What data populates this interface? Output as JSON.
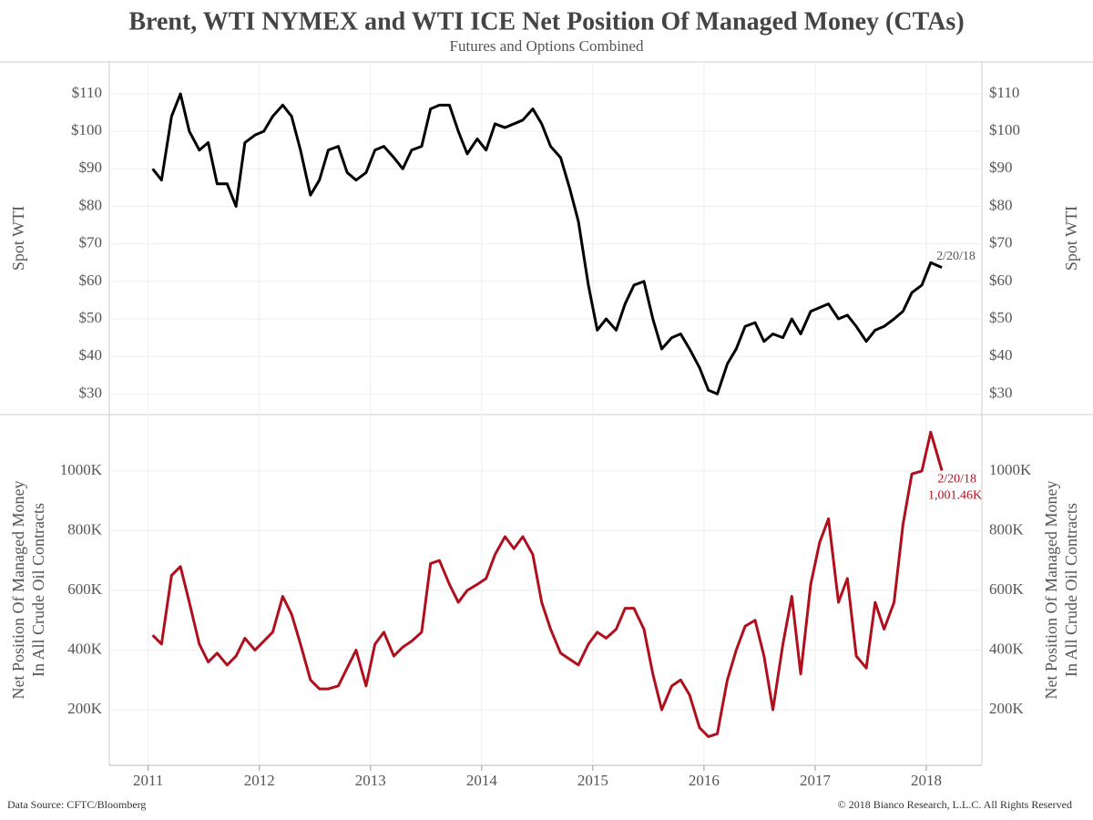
{
  "chart_data": [
    {
      "type": "line",
      "title": "Brent, WTI NYMEX and WTI ICE Net Position Of Managed Money (CTAs)",
      "subtitle": "Futures and Options Combined",
      "ylabel": [
        "Spot WTI"
      ],
      "annotation": "2/20/18",
      "color": "#000000",
      "x": [
        2011.04,
        2011.12,
        2011.21,
        2011.29,
        2011.37,
        2011.46,
        2011.54,
        2011.62,
        2011.71,
        2011.79,
        2011.87,
        2011.96,
        2012.04,
        2012.12,
        2012.21,
        2012.29,
        2012.37,
        2012.46,
        2012.54,
        2012.62,
        2012.71,
        2012.79,
        2012.87,
        2012.96,
        2013.04,
        2013.12,
        2013.21,
        2013.29,
        2013.37,
        2013.46,
        2013.54,
        2013.62,
        2013.71,
        2013.79,
        2013.87,
        2013.96,
        2014.04,
        2014.12,
        2014.21,
        2014.29,
        2014.37,
        2014.46,
        2014.54,
        2014.62,
        2014.71,
        2014.79,
        2014.87,
        2014.96,
        2015.04,
        2015.12,
        2015.21,
        2015.29,
        2015.37,
        2015.46,
        2015.54,
        2015.62,
        2015.71,
        2015.79,
        2015.87,
        2015.96,
        2016.04,
        2016.12,
        2016.21,
        2016.29,
        2016.37,
        2016.46,
        2016.54,
        2016.62,
        2016.71,
        2016.79,
        2016.87,
        2016.96,
        2017.04,
        2017.12,
        2017.21,
        2017.29,
        2017.37,
        2017.46,
        2017.54,
        2017.62,
        2017.71,
        2017.79,
        2017.87,
        2017.96,
        2018.04,
        2018.14
      ],
      "values": [
        90,
        87,
        104,
        110,
        100,
        95,
        97,
        86,
        86,
        80,
        97,
        99,
        100,
        104,
        107,
        104,
        95,
        83,
        87,
        95,
        96,
        89,
        87,
        89,
        95,
        96,
        93,
        90,
        95,
        96,
        106,
        107,
        107,
        100,
        94,
        98,
        95,
        102,
        101,
        102,
        103,
        106,
        102,
        96,
        93,
        85,
        76,
        59,
        47,
        50,
        47,
        54,
        59,
        60,
        50,
        42,
        45,
        46,
        42,
        37,
        31,
        30,
        38,
        42,
        48,
        49,
        44,
        46,
        45,
        50,
        46,
        52,
        53,
        54,
        50,
        51,
        48,
        44,
        47,
        48,
        50,
        52,
        57,
        59,
        65,
        63.7
      ],
      "xlim": [
        2010.65,
        2018.5
      ],
      "xticks": [
        2011,
        2012,
        2013,
        2014,
        2015,
        2016,
        2017,
        2018
      ],
      "ylim": [
        24.5,
        118.5
      ],
      "yticks": [
        {
          "value": 30,
          "label": "$30"
        },
        {
          "value": 40,
          "label": "$40"
        },
        {
          "value": 50,
          "label": "$50"
        },
        {
          "value": 60,
          "label": "$60"
        },
        {
          "value": 70,
          "label": "$70"
        },
        {
          "value": 80,
          "label": "$80"
        },
        {
          "value": 90,
          "label": "$90"
        },
        {
          "value": 100,
          "label": "$100"
        },
        {
          "value": 110,
          "label": "$110"
        }
      ],
      "grid": true
    },
    {
      "type": "line",
      "ylabel": [
        "Net Position Of Managed Money",
        "In All Crude Oil Contracts"
      ],
      "annotation": "2/20/18",
      "color": "#b0101e",
      "x": [
        2011.04,
        2011.12,
        2011.21,
        2011.29,
        2011.37,
        2011.46,
        2011.54,
        2011.62,
        2011.71,
        2011.79,
        2011.87,
        2011.96,
        2012.04,
        2012.12,
        2012.21,
        2012.29,
        2012.37,
        2012.46,
        2012.54,
        2012.62,
        2012.71,
        2012.79,
        2012.87,
        2012.96,
        2013.04,
        2013.12,
        2013.21,
        2013.29,
        2013.37,
        2013.46,
        2013.54,
        2013.62,
        2013.71,
        2013.79,
        2013.87,
        2013.96,
        2014.04,
        2014.12,
        2014.21,
        2014.29,
        2014.37,
        2014.46,
        2014.54,
        2014.62,
        2014.71,
        2014.79,
        2014.87,
        2014.96,
        2015.04,
        2015.12,
        2015.21,
        2015.29,
        2015.37,
        2015.46,
        2015.54,
        2015.62,
        2015.71,
        2015.79,
        2015.87,
        2015.96,
        2016.04,
        2016.12,
        2016.21,
        2016.29,
        2016.37,
        2016.46,
        2016.54,
        2016.62,
        2016.71,
        2016.79,
        2016.87,
        2016.96,
        2017.04,
        2017.12,
        2017.21,
        2017.29,
        2017.37,
        2017.46,
        2017.54,
        2017.62,
        2017.71,
        2017.79,
        2017.87,
        2017.96,
        2018.04,
        2018.14
      ],
      "values": [
        450,
        420,
        650,
        680,
        560,
        420,
        360,
        390,
        350,
        380,
        440,
        400,
        430,
        460,
        580,
        520,
        420,
        300,
        270,
        270,
        280,
        340,
        400,
        280,
        420,
        460,
        380,
        410,
        430,
        460,
        690,
        700,
        620,
        560,
        600,
        620,
        640,
        720,
        780,
        740,
        780,
        720,
        560,
        470,
        390,
        370,
        350,
        420,
        460,
        440,
        470,
        540,
        540,
        470,
        320,
        200,
        280,
        300,
        250,
        140,
        110,
        120,
        300,
        400,
        480,
        500,
        380,
        200,
        420,
        580,
        320,
        620,
        760,
        840,
        560,
        640,
        380,
        340,
        560,
        470,
        560,
        820,
        990,
        1000,
        1130,
        1001.46
      ],
      "value_labels": [
        null,
        null,
        null,
        null,
        null,
        null,
        null,
        null,
        null,
        null,
        null,
        null,
        null,
        null,
        null,
        null,
        null,
        null,
        null,
        null,
        null,
        null,
        null,
        null,
        null,
        null,
        null,
        null,
        null,
        null,
        null,
        null,
        null,
        null,
        null,
        null,
        null,
        null,
        null,
        null,
        null,
        null,
        null,
        null,
        null,
        null,
        null,
        null,
        null,
        null,
        null,
        null,
        null,
        null,
        null,
        null,
        null,
        null,
        null,
        null,
        null,
        null,
        null,
        null,
        null,
        null,
        null,
        null,
        null,
        null,
        null,
        null,
        null,
        null,
        null,
        null,
        null,
        null,
        null,
        null,
        null,
        null,
        null,
        null,
        null,
        "1,001.46K"
      ],
      "xlim": [
        2010.65,
        2018.5
      ],
      "xticks": [
        2011,
        2012,
        2013,
        2014,
        2015,
        2016,
        2017,
        2018
      ],
      "ylim": [
        14,
        1189
      ],
      "yticks": [
        {
          "value": 200,
          "label": "200K"
        },
        {
          "value": 400,
          "label": "400K"
        },
        {
          "value": 600,
          "label": "600K"
        },
        {
          "value": 800,
          "label": "800K"
        },
        {
          "value": 1000,
          "label": "1000K"
        }
      ],
      "grid": true
    }
  ],
  "footer": {
    "source": "Data Source: CFTC/Bloomberg",
    "copyright": "© 2018 Bianco Research, L.L.C. All Rights Reserved"
  }
}
